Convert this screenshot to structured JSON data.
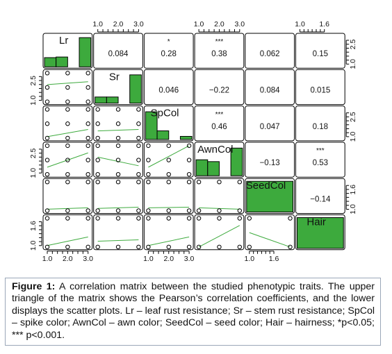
{
  "chart_data": {
    "type": "scatter",
    "variables": [
      "Lr",
      "Sr",
      "SpCol",
      "AwnCol",
      "SeedCol",
      "Hair"
    ],
    "axis_ranges": {
      "Lr": [
        1,
        3
      ],
      "Sr": [
        1,
        3
      ],
      "SpCol": [
        1,
        3
      ],
      "AwnCol": [
        1,
        3
      ],
      "SeedCol": [
        1,
        2
      ],
      "Hair": [
        1,
        2
      ]
    },
    "tick_labels": {
      "top": [
        [
          "1.0",
          "2.0",
          "3.0"
        ],
        [
          "1.0",
          "2.0",
          "3.0"
        ],
        [
          "1.0",
          "1.6"
        ]
      ],
      "bottom": [
        [
          "1.0",
          "2.0",
          "3.0"
        ],
        [
          "1.0",
          "2.0",
          "3.0"
        ],
        [
          "1.0",
          "1.6"
        ]
      ],
      "left": [
        [
          "2.5",
          "1.0"
        ],
        [
          "2.5",
          "1.0"
        ],
        [
          "1.6",
          "1.0"
        ]
      ],
      "right": [
        [
          "2.5",
          "1.0"
        ],
        [
          "2.5",
          "1.0"
        ],
        [
          "1.6",
          "1.0"
        ]
      ]
    },
    "correlations": [
      {
        "row": "Lr",
        "col": "Sr",
        "r": "0.084",
        "stars": ""
      },
      {
        "row": "Lr",
        "col": "SpCol",
        "r": "0.28",
        "stars": "*"
      },
      {
        "row": "Lr",
        "col": "AwnCol",
        "r": "0.38",
        "stars": "***"
      },
      {
        "row": "Lr",
        "col": "SeedCol",
        "r": "0.062",
        "stars": ""
      },
      {
        "row": "Lr",
        "col": "Hair",
        "r": "0.15",
        "stars": ""
      },
      {
        "row": "Sr",
        "col": "SpCol",
        "r": "0.046",
        "stars": ""
      },
      {
        "row": "Sr",
        "col": "AwnCol",
        "r": "−0.22",
        "stars": ""
      },
      {
        "row": "Sr",
        "col": "SeedCol",
        "r": "0.084",
        "stars": ""
      },
      {
        "row": "Sr",
        "col": "Hair",
        "r": "0.015",
        "stars": ""
      },
      {
        "row": "SpCol",
        "col": "AwnCol",
        "r": "0.46",
        "stars": "***"
      },
      {
        "row": "SpCol",
        "col": "SeedCol",
        "r": "0.047",
        "stars": ""
      },
      {
        "row": "SpCol",
        "col": "Hair",
        "r": "0.18",
        "stars": ""
      },
      {
        "row": "AwnCol",
        "col": "SeedCol",
        "r": "−0.13",
        "stars": ""
      },
      {
        "row": "AwnCol",
        "col": "Hair",
        "r": "0.53",
        "stars": "***"
      },
      {
        "row": "SeedCol",
        "col": "Hair",
        "r": "−0.14",
        "stars": ""
      }
    ],
    "histograms": {
      "Lr": [
        0.3,
        0.32,
        0.0,
        0.95
      ],
      "Sr": [
        0.2,
        0.2,
        0.0,
        0.92
      ],
      "SpCol": [
        0.9,
        0.28,
        0.0,
        0.1
      ],
      "AwnCol": [
        0.52,
        0.46,
        0.0,
        0.9
      ],
      "SeedCol": [
        1.0
      ],
      "Hair": [
        1.0
      ]
    },
    "scatter_points": [
      {
        "row": "Sr",
        "col": "Lr",
        "points": [
          [
            1,
            1
          ],
          [
            2,
            1
          ],
          [
            3,
            1
          ],
          [
            1,
            2
          ],
          [
            2,
            2
          ],
          [
            3,
            2
          ],
          [
            1,
            3
          ],
          [
            2,
            3
          ],
          [
            3,
            3
          ]
        ],
        "fit": [
          [
            1,
            2.2
          ],
          [
            3,
            2.4
          ]
        ]
      },
      {
        "row": "SpCol",
        "col": "Lr",
        "points": [
          [
            1,
            1
          ],
          [
            2,
            1
          ],
          [
            3,
            1
          ],
          [
            1,
            2
          ],
          [
            2,
            2
          ],
          [
            3,
            2
          ],
          [
            1,
            3
          ],
          [
            2,
            3
          ],
          [
            3,
            3
          ]
        ],
        "fit": [
          [
            1,
            1.1
          ],
          [
            3,
            1.6
          ]
        ]
      },
      {
        "row": "SpCol",
        "col": "Sr",
        "points": [
          [
            1,
            1
          ],
          [
            2,
            1
          ],
          [
            3,
            1
          ],
          [
            1,
            2
          ],
          [
            2,
            2
          ],
          [
            3,
            2
          ],
          [
            1,
            3
          ],
          [
            2,
            3
          ],
          [
            3,
            3
          ]
        ],
        "fit": [
          [
            1,
            1.5
          ],
          [
            3,
            1.6
          ]
        ]
      },
      {
        "row": "AwnCol",
        "col": "Lr",
        "points": [
          [
            1,
            1
          ],
          [
            2,
            1
          ],
          [
            3,
            1
          ],
          [
            1,
            2
          ],
          [
            2,
            2
          ],
          [
            3,
            2
          ],
          [
            1,
            3
          ],
          [
            2,
            3
          ],
          [
            3,
            3
          ]
        ],
        "fit": [
          [
            1,
            1.5
          ],
          [
            3,
            2.5
          ]
        ]
      },
      {
        "row": "AwnCol",
        "col": "Sr",
        "points": [
          [
            1,
            1
          ],
          [
            2,
            1
          ],
          [
            3,
            1
          ],
          [
            1,
            2
          ],
          [
            2,
            2
          ],
          [
            3,
            2
          ],
          [
            1,
            3
          ],
          [
            2,
            3
          ],
          [
            3,
            3
          ]
        ],
        "fit": [
          [
            1,
            2.2
          ],
          [
            3,
            1.6
          ]
        ]
      },
      {
        "row": "AwnCol",
        "col": "SpCol",
        "points": [
          [
            1,
            1
          ],
          [
            2,
            1
          ],
          [
            3,
            1
          ],
          [
            1,
            2
          ],
          [
            2,
            2
          ],
          [
            3,
            2
          ],
          [
            1,
            3
          ],
          [
            2,
            3
          ],
          [
            3,
            3
          ]
        ],
        "fit": [
          [
            1,
            1.5
          ],
          [
            3,
            3
          ]
        ]
      },
      {
        "row": "SeedCol",
        "col": "Lr",
        "points": [
          [
            1,
            1
          ],
          [
            2,
            1
          ],
          [
            3,
            1
          ],
          [
            1,
            2
          ],
          [
            2,
            2
          ],
          [
            3,
            2
          ]
        ],
        "fit": [
          [
            1,
            1.05
          ],
          [
            3,
            1.1
          ]
        ]
      },
      {
        "row": "SeedCol",
        "col": "Sr",
        "points": [
          [
            1,
            1
          ],
          [
            2,
            1
          ],
          [
            3,
            1
          ],
          [
            1,
            2
          ],
          [
            2,
            2
          ],
          [
            3,
            2
          ]
        ],
        "fit": [
          [
            1,
            1.08
          ],
          [
            3,
            1.12
          ]
        ]
      },
      {
        "row": "SeedCol",
        "col": "SpCol",
        "points": [
          [
            1,
            1
          ],
          [
            2,
            1
          ],
          [
            3,
            1
          ],
          [
            1,
            2
          ],
          [
            2,
            2
          ],
          [
            3,
            2
          ]
        ],
        "fit": [
          [
            1,
            1.1
          ],
          [
            3,
            1.12
          ]
        ]
      },
      {
        "row": "SeedCol",
        "col": "AwnCol",
        "points": [
          [
            1,
            1
          ],
          [
            2,
            1
          ],
          [
            3,
            1
          ],
          [
            1,
            2
          ],
          [
            2,
            2
          ],
          [
            3,
            2
          ]
        ],
        "fit": [
          [
            1,
            1.1
          ],
          [
            3,
            1.05
          ]
        ]
      },
      {
        "row": "Hair",
        "col": "Lr",
        "points": [
          [
            1,
            1
          ],
          [
            2,
            1
          ],
          [
            3,
            1
          ],
          [
            1,
            2
          ],
          [
            2,
            2
          ],
          [
            3,
            2
          ]
        ],
        "fit": [
          [
            1,
            1.05
          ],
          [
            3,
            1.35
          ]
        ]
      },
      {
        "row": "Hair",
        "col": "Sr",
        "points": [
          [
            1,
            1
          ],
          [
            2,
            1
          ],
          [
            3,
            1
          ],
          [
            1,
            2
          ],
          [
            2,
            2
          ],
          [
            3,
            2
          ]
        ],
        "fit": [
          [
            1,
            1.2
          ],
          [
            3,
            1.25
          ]
        ]
      },
      {
        "row": "Hair",
        "col": "SpCol",
        "points": [
          [
            1,
            1
          ],
          [
            2,
            1
          ],
          [
            3,
            1
          ],
          [
            1,
            2
          ],
          [
            2,
            2
          ],
          [
            3,
            2
          ]
        ],
        "fit": [
          [
            1,
            1.05
          ],
          [
            3,
            1.35
          ]
        ]
      },
      {
        "row": "Hair",
        "col": "AwnCol",
        "points": [
          [
            1,
            1
          ],
          [
            2,
            1
          ],
          [
            3,
            1
          ],
          [
            1,
            2
          ],
          [
            2,
            2
          ],
          [
            3,
            2
          ]
        ],
        "fit": [
          [
            1,
            1.0
          ],
          [
            3,
            1.75
          ]
        ]
      },
      {
        "row": "Hair",
        "col": "SeedCol",
        "points": [
          [
            1,
            1
          ],
          [
            2,
            1
          ],
          [
            1,
            2
          ],
          [
            2,
            2
          ]
        ],
        "fit": [
          [
            1,
            1.5
          ],
          [
            2,
            1.0
          ]
        ]
      }
    ],
    "colors": {
      "bar": "#3daa3d",
      "fit_line": "#3daa3d",
      "points": "#000000"
    }
  },
  "caption": {
    "label": "Figure 1:",
    "text": " A correlation matrix between the studied phenotypic traits. The upper triangle of the matrix shows the Pearson’s correlation coefficients, and the lower displays the scatter plots. Lr – leaf rust resistance; Sr – stem rust resistance; SpCol – spike color; AwnCol – awn color; SeedCol – seed color; Hair – hairness; *p<0.05; *** p<0.001."
  }
}
